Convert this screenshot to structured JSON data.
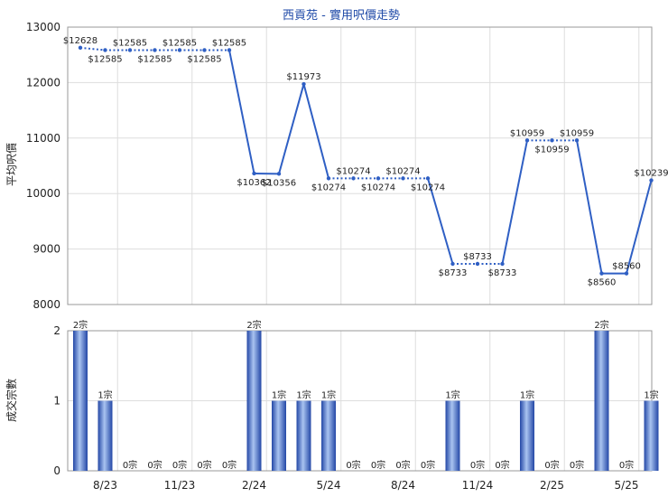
{
  "colors": {
    "accent": "#2f5fc4",
    "grid": "#dddddd",
    "text": "#222222",
    "title": "#1f4aa8"
  },
  "chart_data": [
    {
      "type": "line",
      "title": "西貢苑 - 實用呎價走勢",
      "ylabel": "平均呎價",
      "ylim": [
        8000,
        13000
      ],
      "yticks": [
        "8000",
        "9000",
        "10000",
        "11000",
        "12000",
        "13000"
      ],
      "grid": true,
      "series": [
        {
          "values": [
            12628,
            12585,
            12585,
            12585,
            12585,
            12585,
            12585,
            10362,
            10356,
            11973,
            10274,
            10274,
            10274,
            10274,
            10274,
            8733,
            8733,
            8733,
            10959,
            10959,
            10959,
            8560,
            8560,
            10239
          ],
          "labels": [
            "$12628",
            "$12585",
            "$12585",
            "$12585",
            "$12585",
            "$12585",
            "$12585",
            "$10362",
            "$10356",
            "$11973",
            "$10274",
            "$10274",
            "$10274",
            "$10274",
            "$10274",
            "$8733",
            "$8733",
            "$8733",
            "$10959",
            "$10959",
            "$10959",
            "$8560",
            "$8560",
            "$10239"
          ],
          "interpolated": [
            false,
            true,
            true,
            true,
            true,
            true,
            false,
            false,
            false,
            false,
            false,
            true,
            true,
            true,
            false,
            false,
            true,
            false,
            false,
            true,
            false,
            false,
            false,
            false
          ]
        }
      ]
    },
    {
      "type": "bar",
      "ylabel": "成交宗數",
      "ylim": [
        0,
        2
      ],
      "yticks": [
        "0",
        "1",
        "2"
      ],
      "grid": true,
      "categories": [
        "",
        "8/23",
        "",
        "",
        "11/23",
        "",
        "",
        "2/24",
        "",
        "",
        "5/24",
        "",
        "",
        "8/24",
        "",
        "",
        "11/24",
        "",
        "",
        "2/25",
        "",
        "",
        "5/25",
        ""
      ],
      "xtick_labels": [
        "8/23",
        "11/23",
        "2/24",
        "5/24",
        "8/24",
        "11/24",
        "2/25",
        "5/25"
      ],
      "values": [
        2,
        1,
        0,
        0,
        0,
        0,
        0,
        2,
        1,
        1,
        1,
        0,
        0,
        0,
        0,
        1,
        0,
        0,
        1,
        0,
        0,
        2,
        0,
        1
      ],
      "labels": [
        "2宗",
        "1宗",
        "0宗",
        "0宗",
        "0宗",
        "0宗",
        "0宗",
        "2宗",
        "1宗",
        "1宗",
        "1宗",
        "0宗",
        "0宗",
        "0宗",
        "0宗",
        "1宗",
        "0宗",
        "0宗",
        "1宗",
        "0宗",
        "0宗",
        "2宗",
        "0宗",
        "1宗"
      ]
    }
  ]
}
